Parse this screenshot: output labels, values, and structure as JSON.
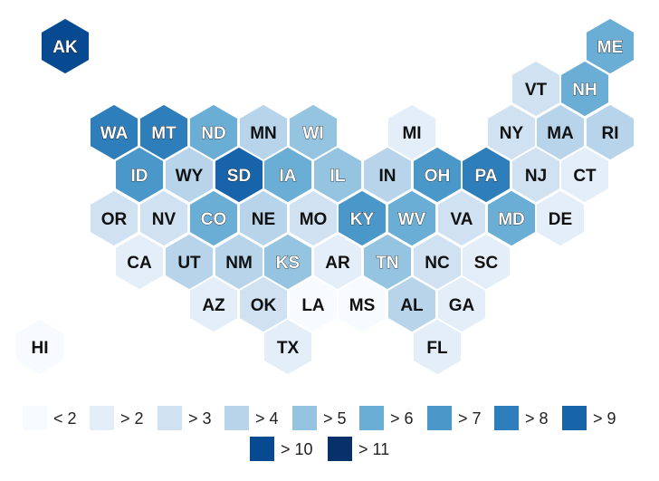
{
  "map": {
    "palette": [
      "#f7fbff",
      "#e3eef9",
      "#d0e1f2",
      "#b7d4ea",
      "#94c4df",
      "#6aaed6",
      "#4a98c9",
      "#2e7ebc",
      "#1764ab",
      "#084a91",
      "#08306b"
    ],
    "dark_text_from_level": 4,
    "states": [
      {
        "abbr": "AK",
        "level": 9
      },
      {
        "abbr": "ME",
        "level": 5
      },
      {
        "abbr": "VT",
        "level": 2
      },
      {
        "abbr": "NH",
        "level": 5
      },
      {
        "abbr": "WA",
        "level": 7
      },
      {
        "abbr": "MT",
        "level": 7
      },
      {
        "abbr": "ND",
        "level": 5
      },
      {
        "abbr": "MN",
        "level": 3
      },
      {
        "abbr": "WI",
        "level": 4
      },
      {
        "abbr": "MI",
        "level": 1
      },
      {
        "abbr": "NY",
        "level": 2
      },
      {
        "abbr": "MA",
        "level": 3
      },
      {
        "abbr": "RI",
        "level": 3
      },
      {
        "abbr": "ID",
        "level": 6
      },
      {
        "abbr": "WY",
        "level": 3
      },
      {
        "abbr": "SD",
        "level": 8
      },
      {
        "abbr": "IA",
        "level": 5
      },
      {
        "abbr": "IL",
        "level": 4
      },
      {
        "abbr": "IN",
        "level": 3
      },
      {
        "abbr": "OH",
        "level": 6
      },
      {
        "abbr": "PA",
        "level": 7
      },
      {
        "abbr": "NJ",
        "level": 2
      },
      {
        "abbr": "CT",
        "level": 1
      },
      {
        "abbr": "OR",
        "level": 2
      },
      {
        "abbr": "NV",
        "level": 2
      },
      {
        "abbr": "CO",
        "level": 5
      },
      {
        "abbr": "NE",
        "level": 3
      },
      {
        "abbr": "MO",
        "level": 2
      },
      {
        "abbr": "KY",
        "level": 6
      },
      {
        "abbr": "WV",
        "level": 5
      },
      {
        "abbr": "VA",
        "level": 2
      },
      {
        "abbr": "MD",
        "level": 5
      },
      {
        "abbr": "DE",
        "level": 1
      },
      {
        "abbr": "CA",
        "level": 1
      },
      {
        "abbr": "UT",
        "level": 3
      },
      {
        "abbr": "NM",
        "level": 3
      },
      {
        "abbr": "KS",
        "level": 4
      },
      {
        "abbr": "AR",
        "level": 1
      },
      {
        "abbr": "TN",
        "level": 4
      },
      {
        "abbr": "NC",
        "level": 2
      },
      {
        "abbr": "SC",
        "level": 1
      },
      {
        "abbr": "AZ",
        "level": 1
      },
      {
        "abbr": "OK",
        "level": 2
      },
      {
        "abbr": "LA",
        "level": 0
      },
      {
        "abbr": "MS",
        "level": 0
      },
      {
        "abbr": "AL",
        "level": 3
      },
      {
        "abbr": "GA",
        "level": 1
      },
      {
        "abbr": "HI",
        "level": 0
      },
      {
        "abbr": "TX",
        "level": 1
      },
      {
        "abbr": "FL",
        "level": 1
      }
    ]
  },
  "legend": {
    "items": [
      "< 2",
      "> 2",
      "> 3",
      "> 4",
      "> 5",
      "> 6",
      "> 7",
      "> 8",
      "> 9",
      "> 10",
      "> 11"
    ]
  }
}
